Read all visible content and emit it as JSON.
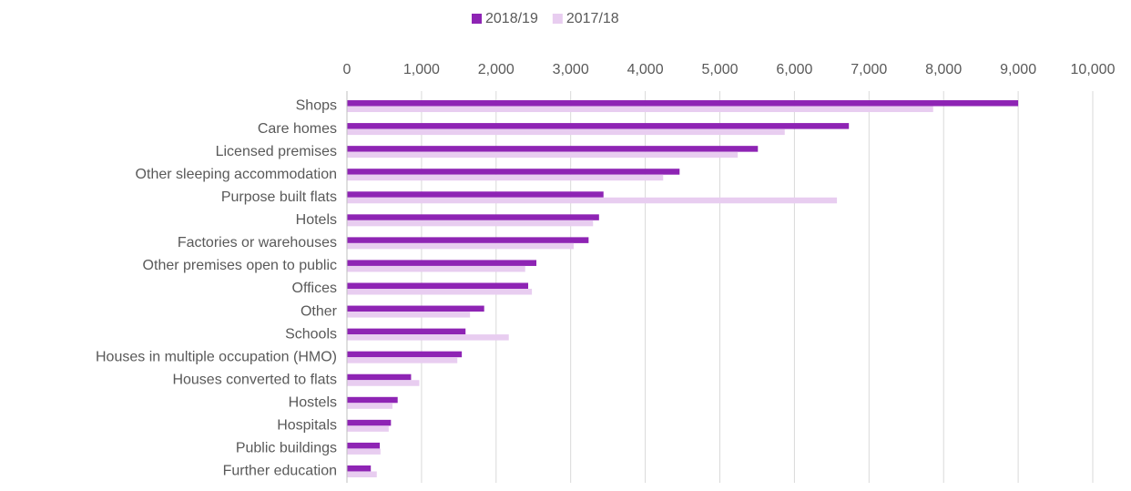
{
  "chart_data": {
    "type": "barh",
    "categories": [
      "Shops",
      "Care homes",
      "Licensed premises",
      "Other sleeping accommodation",
      "Purpose built flats",
      "Hotels",
      "Factories or warehouses",
      "Other premises open to public",
      "Offices",
      "Other",
      "Schools",
      "Houses in multiple occupation (HMO)",
      "Houses converted to flats",
      "Hostels",
      "Hospitals",
      "Public buildings",
      "Further education"
    ],
    "series": [
      {
        "name": "2018/19",
        "color": "#8e24b4",
        "values": [
          9000,
          6730,
          5510,
          4460,
          3440,
          3380,
          3240,
          2540,
          2430,
          1840,
          1590,
          1540,
          860,
          680,
          590,
          440,
          320
        ]
      },
      {
        "name": "2017/18",
        "color": "#e8cdf0",
        "values": [
          7860,
          5870,
          5240,
          4240,
          6570,
          3300,
          3040,
          2390,
          2480,
          1650,
          2170,
          1480,
          970,
          610,
          560,
          450,
          400
        ]
      }
    ],
    "xlim": [
      0,
      10000
    ],
    "xticks": [
      0,
      {
        "value": 1000,
        "label": "1,000"
      },
      {
        "value": 2000,
        "label": "2,000"
      },
      {
        "value": 3000,
        "label": "3,000"
      },
      {
        "value": 4000,
        "label": "4,000"
      },
      {
        "value": 5000,
        "label": "5,000"
      },
      {
        "value": 6000,
        "label": "6,000"
      },
      {
        "value": 7000,
        "label": "7,000"
      },
      {
        "value": 8000,
        "label": "8,000"
      },
      {
        "value": 9000,
        "label": "9,000"
      },
      {
        "value": 10000,
        "label": "10,000"
      }
    ],
    "grid": true,
    "legend": "top"
  }
}
